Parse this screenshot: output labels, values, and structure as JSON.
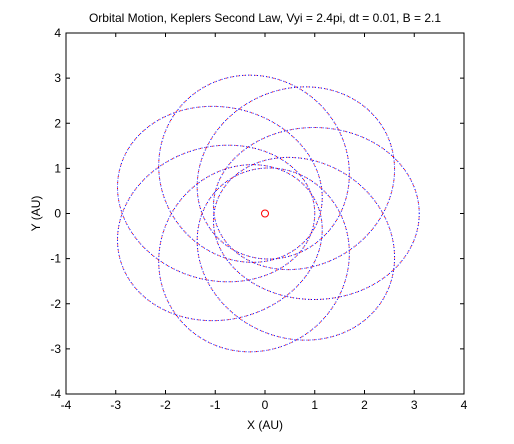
{
  "chart_data": {
    "type": "line",
    "title": "Orbital Motion, Keplers Second Law, Vyi = 2.4pi, dt = 0.01, B = 2.1",
    "xlabel": "X (AU)",
    "ylabel": "Y (AU)",
    "xlim": [
      -4,
      4
    ],
    "ylim": [
      -4,
      4
    ],
    "xticks": [
      "-4",
      "-3",
      "-2",
      "-1",
      "0",
      "1",
      "2",
      "3",
      "4"
    ],
    "yticks": [
      "-4",
      "-3",
      "-2",
      "-1",
      "0",
      "1",
      "2",
      "3",
      "4"
    ],
    "grid": false,
    "legend": "none",
    "orbit": {
      "perihelion": 1.0,
      "aphelion": 3.1,
      "loops": 8,
      "precession_per_loop_deg": 45,
      "initial_apsis_angle_deg": 180,
      "colors": [
        "#0000ff",
        "#ff0000"
      ],
      "style": "dotted"
    },
    "sun": {
      "x": 0,
      "y": 0,
      "color": "#ff0000",
      "marker": "circle"
    }
  }
}
